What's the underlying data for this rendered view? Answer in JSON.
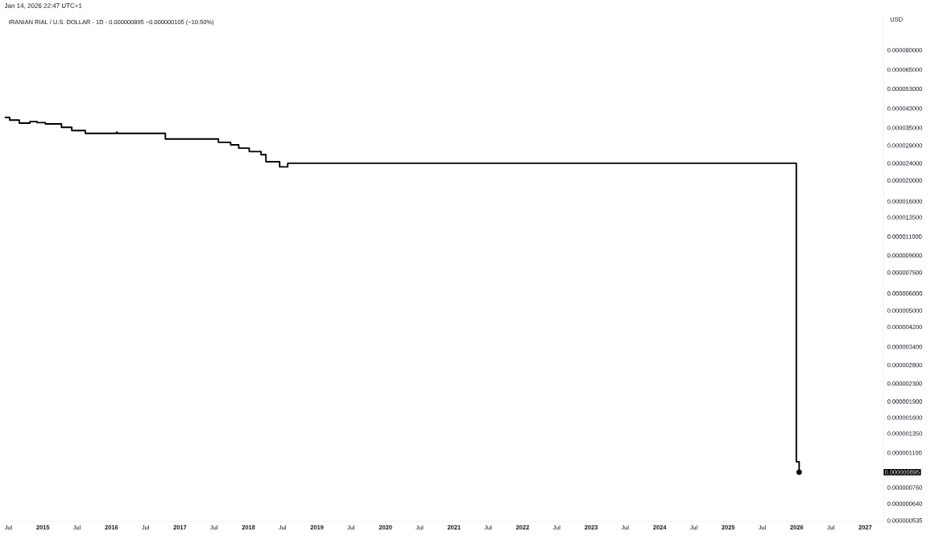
{
  "chart_data": {
    "type": "step",
    "title": "IRANIAN RIAL / U.S. DOLLAR - 1D - 0.000000895  −0.000000105 (−10.50%)",
    "ylabel": "USD",
    "annotations": [
      "Jan 14, 2026 22:47 UTC+1",
      "0.000000895"
    ],
    "x": [
      "2014-06-12",
      "2014-07-08",
      "2014-08-28",
      "2014-10-24",
      "2014-12-01",
      "2015-01-14",
      "2015-04-10",
      "2015-06-04",
      "2015-08-15",
      "2016-01-28",
      "2016-02-01",
      "2016-10-15",
      "2017-07-25",
      "2017-09-28",
      "2017-11-10",
      "2018-01-05",
      "2018-03-09",
      "2018-04-04",
      "2018-06-16",
      "2018-07-29",
      "2025-12-30",
      "2026-01-14"
    ],
    "series": [
      {
        "color": "#000000",
        "values": [
          3.91e-05,
          3.8e-05,
          3.68e-05,
          3.74e-05,
          3.7e-05,
          3.65e-05,
          3.52e-05,
          3.4e-05,
          3.3e-05,
          3.34e-05,
          3.3e-05,
          3.11e-05,
          3e-05,
          2.92e-05,
          2.82e-05,
          2.72e-05,
          2.63e-05,
          2.44e-05,
          2.31e-05,
          2.4e-05,
          1e-06,
          8.95e-07
        ]
      }
    ],
    "log": "y",
    "grid": false,
    "marker": "none",
    "line_style": "solid",
    "xlim": [
      "2014-06-08",
      "2027-04-08"
    ],
    "xticks": [
      {
        "value": "2014-07-01",
        "label": "Jul"
      },
      {
        "value": "2015-01-01",
        "label": "2015"
      },
      {
        "value": "2015-07-01",
        "label": "Jul"
      },
      {
        "value": "2016-01-01",
        "label": "2016"
      },
      {
        "value": "2016-07-01",
        "label": "Jul"
      },
      {
        "value": "2017-01-01",
        "label": "2017"
      },
      {
        "value": "2017-07-01",
        "label": "Jul"
      },
      {
        "value": "2018-01-01",
        "label": "2018"
      },
      {
        "value": "2018-07-01",
        "label": "Jul"
      },
      {
        "value": "2019-01-01",
        "label": "2019"
      },
      {
        "value": "2019-07-01",
        "label": "Jul"
      },
      {
        "value": "2020-01-01",
        "label": "2020"
      },
      {
        "value": "2020-07-01",
        "label": "Jul"
      },
      {
        "value": "2021-01-01",
        "label": "2021"
      },
      {
        "value": "2021-07-01",
        "label": "Jul"
      },
      {
        "value": "2022-01-01",
        "label": "2022"
      },
      {
        "value": "2022-07-01",
        "label": "Jul"
      },
      {
        "value": "2023-01-01",
        "label": "2023"
      },
      {
        "value": "2023-07-01",
        "label": "Jul"
      },
      {
        "value": "2024-01-01",
        "label": "2024"
      },
      {
        "value": "2024-07-01",
        "label": "Jul"
      },
      {
        "value": "2025-01-01",
        "label": "2025"
      },
      {
        "value": "2025-07-01",
        "label": "Jul"
      },
      {
        "value": "2026-01-01",
        "label": "2026"
      },
      {
        "value": "2026-07-01",
        "label": "Jul"
      },
      {
        "value": "2027-01-01",
        "label": "2027"
      }
    ],
    "ylim": [
      5.3e-07,
      0.000117
    ],
    "yticks": [
      {
        "value": 8e-05,
        "label": "0.000080000"
      },
      {
        "value": 6.5e-05,
        "label": "0.000065000"
      },
      {
        "value": 5.3e-05,
        "label": "0.000053000"
      },
      {
        "value": 4.3e-05,
        "label": "0.000043000"
      },
      {
        "value": 3.5e-05,
        "label": "0.000035000"
      },
      {
        "value": 2.9e-05,
        "label": "0.000029000"
      },
      {
        "value": 2.4e-05,
        "label": "0.000024000"
      },
      {
        "value": 2e-05,
        "label": "0.000020000"
      },
      {
        "value": 1.6e-05,
        "label": "0.000016000"
      },
      {
        "value": 1.35e-05,
        "label": "0.000013500"
      },
      {
        "value": 1.1e-05,
        "label": "0.000011000"
      },
      {
        "value": 9e-06,
        "label": "0.000009000"
      },
      {
        "value": 7.5e-06,
        "label": "0.000007500"
      },
      {
        "value": 6e-06,
        "label": "0.000006000"
      },
      {
        "value": 5e-06,
        "label": "0.000005000"
      },
      {
        "value": 4.2e-06,
        "label": "0.000004200"
      },
      {
        "value": 3.4e-06,
        "label": "0.000003400"
      },
      {
        "value": 2.8e-06,
        "label": "0.000002800"
      },
      {
        "value": 2.3e-06,
        "label": "0.000002300"
      },
      {
        "value": 1.9e-06,
        "label": "0.000001900"
      },
      {
        "value": 1.6e-06,
        "label": "0.000001600"
      },
      {
        "value": 1.35e-06,
        "label": "0.000001350"
      },
      {
        "value": 1.1e-06,
        "label": "0.000001100"
      },
      {
        "value": 7.6e-07,
        "label": "0.000000760"
      },
      {
        "value": 6.4e-07,
        "label": "0.000000640"
      },
      {
        "value": 5.35e-07,
        "label": "0.000000535"
      }
    ]
  }
}
